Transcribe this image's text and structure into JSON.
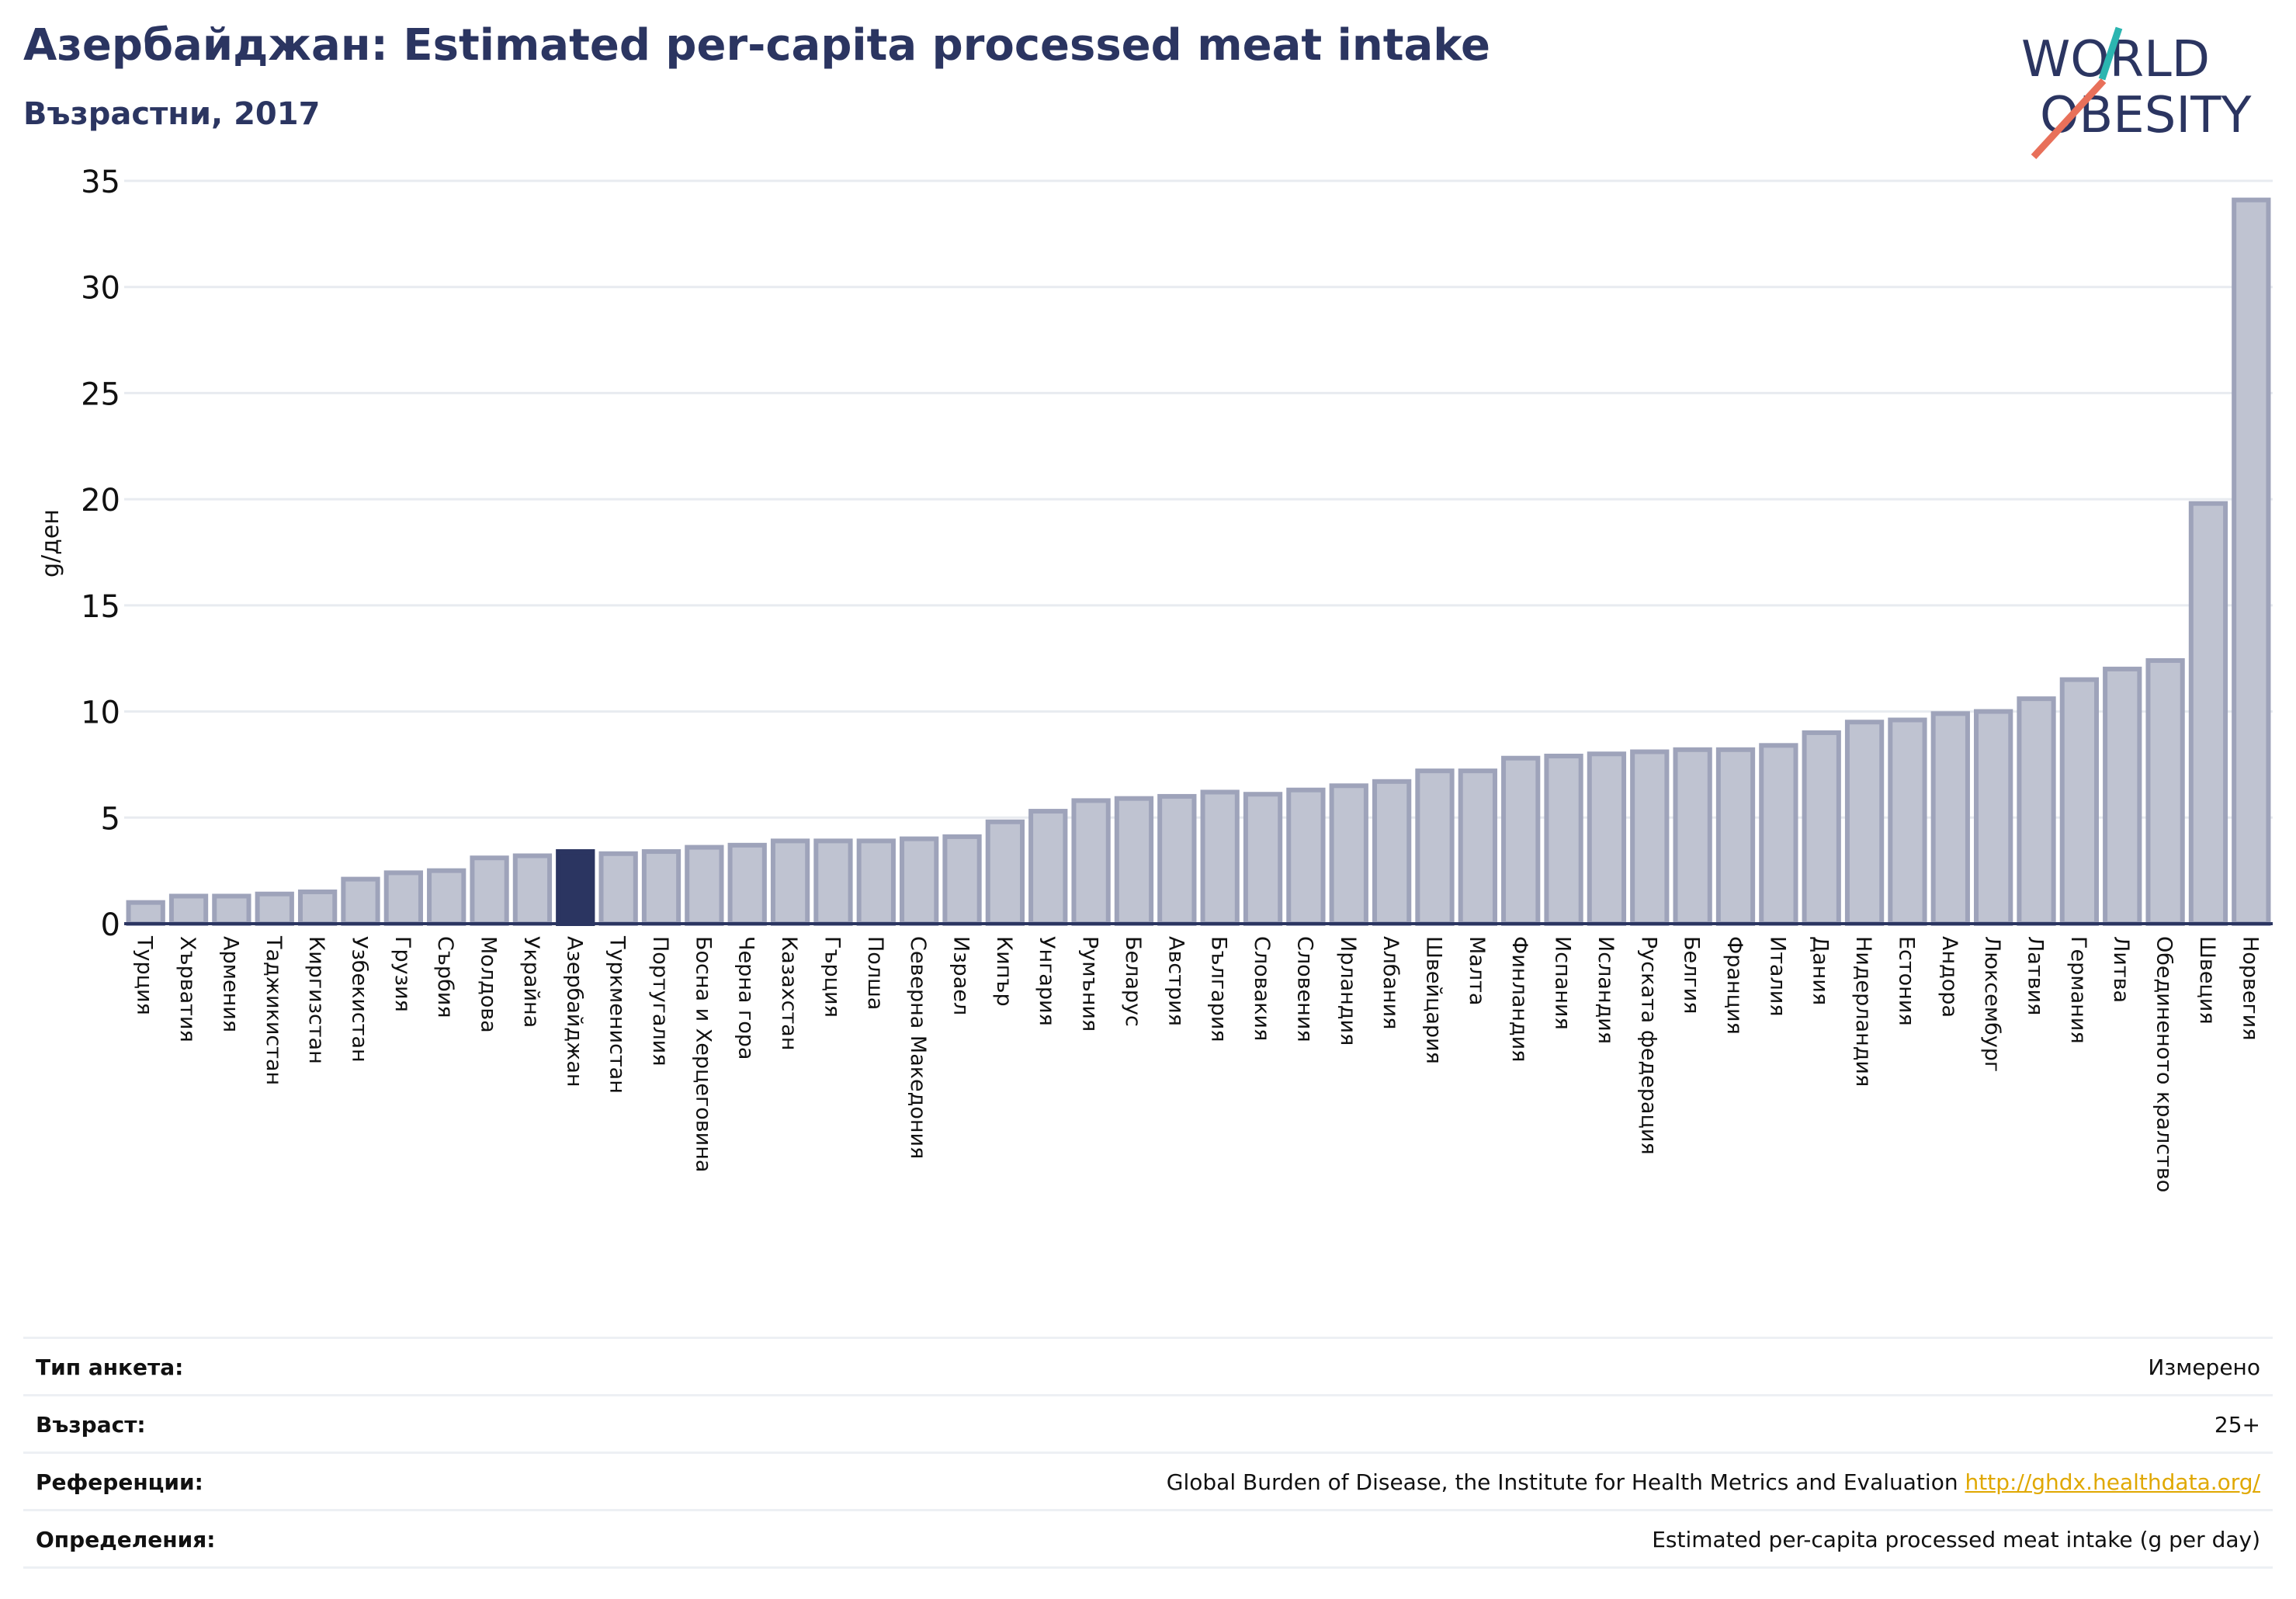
{
  "header": {
    "title": "Азербайджан: Estimated per-capita processed meat intake",
    "subtitle": "Възрастни, 2017"
  },
  "logo": {
    "line1": "WORLD",
    "line2": "OBESITY"
  },
  "colors": {
    "highlight": "#2b3561",
    "bar_fill": "#bfc3d1",
    "bar_stroke": "#9ea3ba",
    "title": "#2b3561",
    "logo_text": "#2b3561",
    "logo_teal": "#2bb5b0",
    "logo_coral": "#e8705a",
    "link": "#e0a800"
  },
  "chart_data": {
    "type": "bar",
    "title": "Азербайджан: Estimated per-capita processed meat intake",
    "subtitle": "Възрастни, 2017",
    "ylabel": "g/ден",
    "xlabel": "",
    "ylim": [
      0,
      35
    ],
    "yticks": [
      0,
      5,
      10,
      15,
      20,
      25,
      30,
      35
    ],
    "grid": true,
    "highlight": "Азербайджан",
    "categories": [
      "Турция",
      "Хърватия",
      "Армения",
      "Таджикистан",
      "Киргизстан",
      "Узбекистан",
      "Грузия",
      "Сърбия",
      "Молдова",
      "Украйна",
      "Азербайджан",
      "Туркменистан",
      "Португалия",
      "Босна и Херцеговина",
      "Черна гора",
      "Казахстан",
      "Гърция",
      "Полша",
      "Северна Македония",
      "Израел",
      "Кипър",
      "Унгария",
      "Румъния",
      "Беларус",
      "Австрия",
      "България",
      "Словакия",
      "Словения",
      "Ирландия",
      "Албания",
      "Швейцария",
      "Малта",
      "Финландия",
      "Испания",
      "Исландия",
      "Руската федерация",
      "Белгия",
      "Франция",
      "Италия",
      "Дания",
      "Нидерландия",
      "Естония",
      "Андора",
      "Люксембург",
      "Латвия",
      "Германия",
      "Литва",
      "Обединеното кралство",
      "Швеция",
      "Норвегия"
    ],
    "values": [
      1.0,
      1.3,
      1.3,
      1.4,
      1.5,
      2.1,
      2.4,
      2.5,
      3.1,
      3.2,
      3.4,
      3.3,
      3.4,
      3.6,
      3.7,
      3.9,
      3.9,
      3.9,
      4.0,
      4.1,
      4.8,
      5.3,
      5.8,
      5.9,
      6.0,
      6.2,
      6.1,
      6.3,
      6.5,
      6.7,
      7.2,
      7.2,
      7.8,
      7.9,
      8.0,
      8.1,
      8.2,
      8.2,
      8.4,
      9.0,
      9.5,
      9.6,
      9.9,
      10.0,
      10.6,
      11.5,
      12.0,
      12.4,
      19.8,
      34.1
    ]
  },
  "footer": {
    "survey_type_label": "Тип анкета:",
    "survey_type_value": "Измерено",
    "age_label": "Възраст:",
    "age_value": "25+",
    "references_label": "Референции:",
    "references_text": "Global Burden of Disease, the Institute for Health Metrics and Evaluation",
    "references_link": "http://ghdx.healthdata.org/",
    "definitions_label": "Определения:",
    "definitions_value": "Estimated per-capita processed meat intake (g per day)"
  }
}
